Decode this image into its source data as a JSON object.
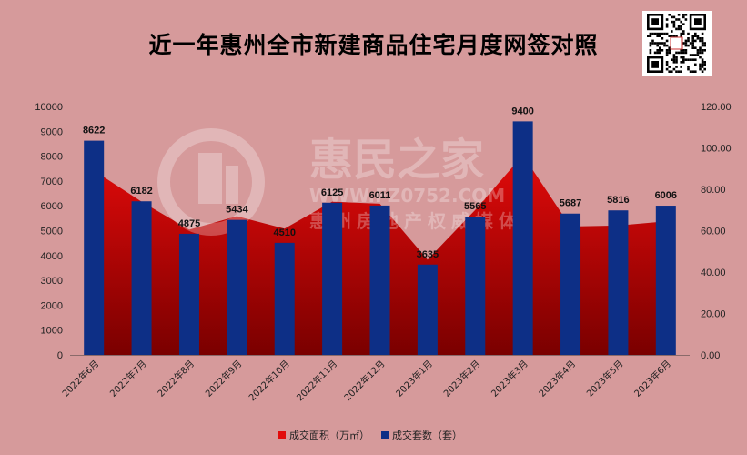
{
  "title": "近一年惠州全市新建商品住宅月度网签对照",
  "watermark": {
    "brand": "惠民之家",
    "url": "WWW.FZ0752.COM",
    "sub": "惠州房地产权威媒体"
  },
  "colors": {
    "background": "#d69a9b",
    "bar": "#0d2f86",
    "area_top": "#e20a0a",
    "area_bottom": "#7a0000"
  },
  "chart_data": {
    "type": "bar+area",
    "categories": [
      "2022年6月",
      "2022年7月",
      "2022年8月",
      "2022年9月",
      "2022年10月",
      "2022年11月",
      "2022年12月",
      "2023年1月",
      "2023年2月",
      "2023年3月",
      "2023年4月",
      "2023年5月",
      "2023年6月"
    ],
    "series": [
      {
        "name": "成交面积（万㎡）",
        "type": "area",
        "axis": "right",
        "color": "#e20a0a",
        "values": [
          89.0,
          74.0,
          60.5,
          67.0,
          61.0,
          74.0,
          73.0,
          46.0,
          70.0,
          96.5,
          62.0,
          62.5,
          64.5
        ]
      },
      {
        "name": "成交套数（套）",
        "type": "bar",
        "axis": "left",
        "color": "#0d2f86",
        "values": [
          8622,
          6182,
          4875,
          5434,
          4510,
          6125,
          6011,
          3635,
          5565,
          9400,
          5687,
          5816,
          6006
        ]
      }
    ],
    "y_left": {
      "min": 0,
      "max": 10000,
      "ticks": [
        "0",
        "1000",
        "2000",
        "3000",
        "4000",
        "5000",
        "6000",
        "7000",
        "8000",
        "9000",
        "10000"
      ]
    },
    "y_right": {
      "min": 0,
      "max": 120,
      "ticks": [
        "0.00",
        "20.00",
        "40.00",
        "60.00",
        "80.00",
        "100.00",
        "120.00"
      ]
    },
    "legend_position": "bottom-center",
    "grid": false
  }
}
